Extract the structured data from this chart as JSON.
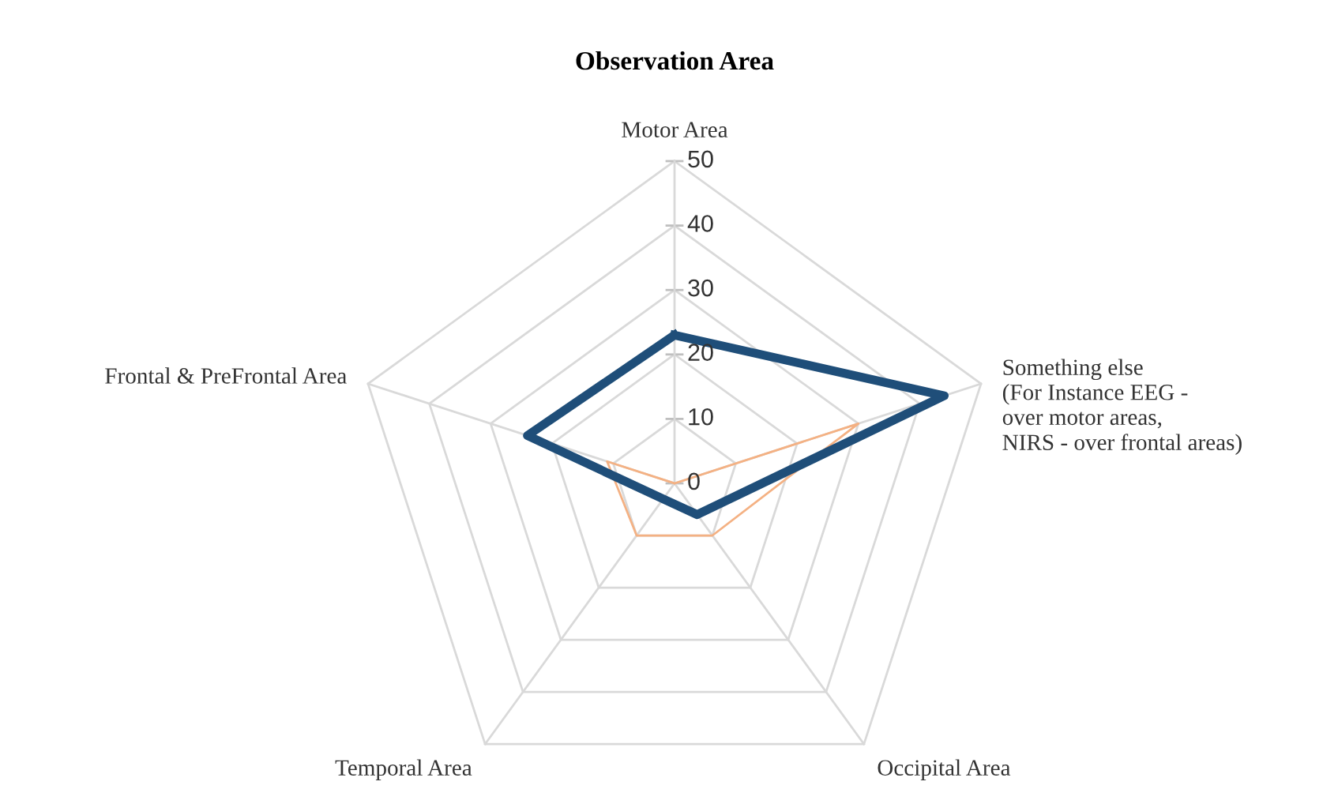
{
  "chart_data": {
    "type": "radar",
    "title": "Observation Area",
    "categories": [
      "Motor Area",
      "Something else\n(For Instance EEG -\nover motor areas,\nNIRS - over frontal areas)",
      "Occipital Area",
      "Temporal Area",
      "Frontal & PreFrontal Area"
    ],
    "series": [
      {
        "color": "#1f4e79",
        "values": [
          23,
          44,
          6,
          3,
          24
        ]
      },
      {
        "color": "#f4b183",
        "values": [
          0,
          30,
          10,
          10,
          11
        ]
      }
    ],
    "ylim": [
      0,
      50
    ],
    "yticks": [
      0,
      10,
      20,
      30,
      40,
      50
    ],
    "legend": false
  }
}
